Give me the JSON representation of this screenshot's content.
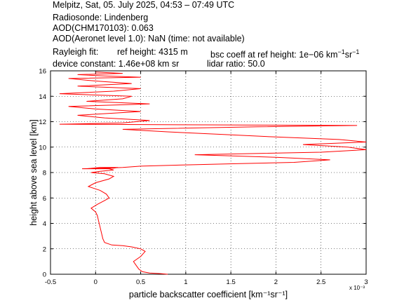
{
  "header": {
    "line1": "Melpitz, Sat, 05. July 2025, 04:53 – 07:49 UTC",
    "line2": "Radiosonde: Lindenberg",
    "line3": "AOD(CHM170103): 0.063",
    "line4": "AOD(Aeronet level 1.0): NaN   (time: not available)",
    "rayleigh_label": "Rayleigh fit:",
    "ref_height": "ref height: 4315 m",
    "bsc_coeff_prefix": "bsc coeff at ref height: 1e−06 km",
    "device_constant": "device constant: 1.46e+08 km sr",
    "lidar_ratio": "lidar ratio: 50.0"
  },
  "chart_data": {
    "type": "line",
    "title": "",
    "xlabel": "particle backscatter coefficient [km⁻¹sr⁻¹]",
    "ylabel": "height above sea level [km]",
    "x_scale_label": "x 10⁻³",
    "xlim": [
      -0.5,
      3.0
    ],
    "ylim": [
      0,
      16
    ],
    "x_ticks": [
      "-0.5",
      "0",
      "0.5",
      "1",
      "1.5",
      "2",
      "2.5",
      "3"
    ],
    "y_ticks": [
      "0",
      "2",
      "4",
      "6",
      "8",
      "10",
      "12",
      "14",
      "16"
    ],
    "grid": true,
    "line_color": "#ff0000",
    "series": [
      {
        "name": "",
        "points_x_e3": [
          0.8,
          0.72,
          0.6,
          0.52,
          0.48,
          0.45,
          0.42,
          0.5,
          0.55,
          0.5,
          0.4,
          0.3,
          0.18,
          0.1,
          0.08,
          0.07,
          0.06,
          0.05,
          0.04,
          0.03,
          0.02,
          0.0,
          -0.05,
          0.02,
          0.1,
          0.15,
          0.12,
          0.05,
          -0.08,
          0.0,
          0.15,
          0.2,
          0.1,
          -0.05,
          0.05,
          0.2,
          0.15,
          -0.1,
          0.05,
          0.25,
          0.2,
          0.0,
          -0.15,
          0.1,
          0.3,
          0.5,
          1.0,
          1.6,
          2.2,
          2.6,
          2.0,
          1.1,
          2.5,
          3.0,
          2.8,
          2.3,
          3.0,
          2.7,
          2.0,
          1.4,
          0.8,
          0.3,
          1.8,
          2.9,
          1.2,
          -0.4,
          0.3,
          0.6,
          0.1,
          -0.2,
          0.5,
          0.0,
          -0.3,
          0.6,
          -0.1,
          0.3,
          0.4,
          -0.4,
          0.2,
          0.5,
          -0.2,
          0.4,
          0.0,
          -0.3,
          0.5,
          0.1,
          -0.2,
          0.3,
          0.0
        ],
        "points_y_km": [
          0.0,
          0.05,
          0.1,
          0.2,
          0.4,
          0.7,
          1.0,
          1.4,
          1.8,
          2.0,
          2.15,
          2.25,
          2.3,
          2.5,
          2.8,
          3.1,
          3.4,
          3.7,
          4.0,
          4.3,
          4.6,
          4.9,
          5.2,
          5.5,
          5.8,
          6.0,
          6.3,
          6.6,
          6.9,
          7.2,
          7.5,
          7.7,
          7.9,
          8.0,
          8.1,
          8.2,
          8.3,
          8.3,
          8.4,
          8.4,
          8.35,
          8.3,
          8.3,
          8.35,
          8.4,
          8.5,
          8.6,
          8.7,
          8.8,
          9.0,
          9.2,
          9.4,
          9.6,
          9.8,
          10.0,
          10.2,
          10.4,
          10.6,
          10.8,
          11.0,
          11.2,
          11.4,
          11.6,
          11.7,
          11.75,
          11.8,
          11.9,
          12.1,
          12.3,
          12.5,
          12.8,
          13.0,
          13.2,
          13.4,
          13.6,
          13.8,
          14.0,
          14.2,
          14.4,
          14.6,
          14.8,
          15.0,
          15.2,
          15.4,
          15.5,
          15.6,
          15.7,
          15.8,
          15.9
        ]
      }
    ]
  }
}
